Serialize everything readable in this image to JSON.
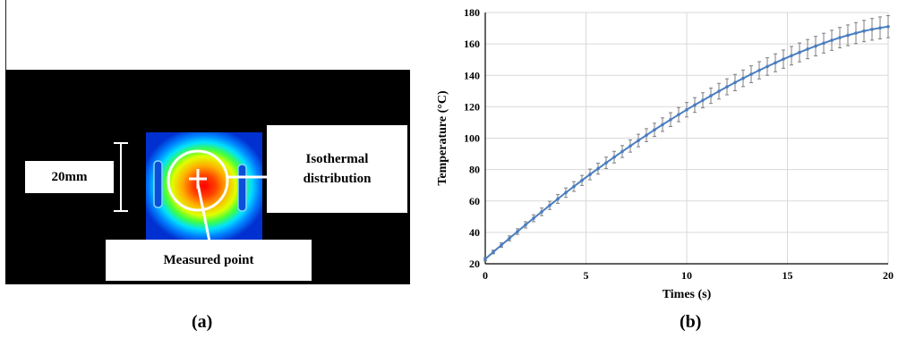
{
  "panel_a": {
    "scale_label": "20mm",
    "isotherm_label_line1": "Isothermal",
    "isotherm_label_line2": "distribution",
    "measured_point_label": "Measured point",
    "caption": "(a)"
  },
  "panel_b": {
    "caption": "(b)"
  },
  "colors": {
    "series_line": "#4a7ebf",
    "error_bar": "#7f7f7f",
    "grid": "#d9d9d9",
    "thermal_background": "#000000"
  },
  "chart_data": {
    "type": "line",
    "xlabel": "Times (s)",
    "ylabel": "Temperature (°C)",
    "xlim": [
      0,
      20
    ],
    "ylim": [
      20,
      180
    ],
    "x_ticks": [
      0,
      5,
      10,
      15,
      20
    ],
    "y_ticks": [
      20,
      40,
      60,
      80,
      100,
      120,
      140,
      160,
      180
    ],
    "grid": true,
    "x": [
      0,
      0.4,
      0.8,
      1.2,
      1.6,
      2.0,
      2.4,
      2.8,
      3.2,
      3.6,
      4.0,
      4.4,
      4.8,
      5.2,
      5.6,
      6.0,
      6.4,
      6.8,
      7.2,
      7.6,
      8.0,
      8.4,
      8.8,
      9.2,
      9.6,
      10.0,
      10.4,
      10.8,
      11.2,
      11.6,
      12.0,
      12.4,
      12.8,
      13.2,
      13.6,
      14.0,
      14.4,
      14.8,
      15.2,
      15.6,
      16.0,
      16.4,
      16.8,
      17.2,
      17.6,
      18.0,
      18.4,
      18.8,
      19.2,
      19.6,
      20.0
    ],
    "series": [
      {
        "values": [
          23.0,
          27.5,
          31.9,
          36.2,
          40.5,
          44.8,
          49.0,
          53.1,
          57.2,
          61.3,
          65.3,
          69.2,
          73.1,
          76.9,
          80.6,
          84.3,
          87.9,
          91.5,
          95.0,
          98.5,
          101.9,
          105.3,
          108.6,
          111.8,
          115.0,
          118.1,
          121.1,
          124.1,
          127.0,
          129.9,
          132.7,
          135.4,
          138.1,
          140.7,
          143.2,
          145.6,
          148.0,
          150.3,
          152.5,
          154.6,
          156.7,
          158.6,
          160.5,
          162.3,
          164.0,
          165.5,
          166.9,
          168.2,
          169.3,
          170.2,
          171.0
        ],
        "error": [
          1.0,
          1.2,
          1.4,
          1.6,
          1.8,
          2.0,
          2.2,
          2.4,
          2.6,
          2.8,
          3.0,
          3.1,
          3.2,
          3.4,
          3.5,
          3.6,
          3.7,
          3.8,
          3.9,
          4.0,
          4.1,
          4.2,
          4.3,
          4.4,
          4.5,
          4.6,
          4.7,
          4.8,
          4.9,
          5.0,
          5.1,
          5.2,
          5.3,
          5.4,
          5.5,
          5.6,
          5.7,
          5.8,
          5.9,
          6.0,
          6.1,
          6.2,
          6.3,
          6.4,
          6.5,
          6.6,
          6.7,
          6.8,
          6.9,
          7.0,
          7.0
        ]
      }
    ]
  }
}
